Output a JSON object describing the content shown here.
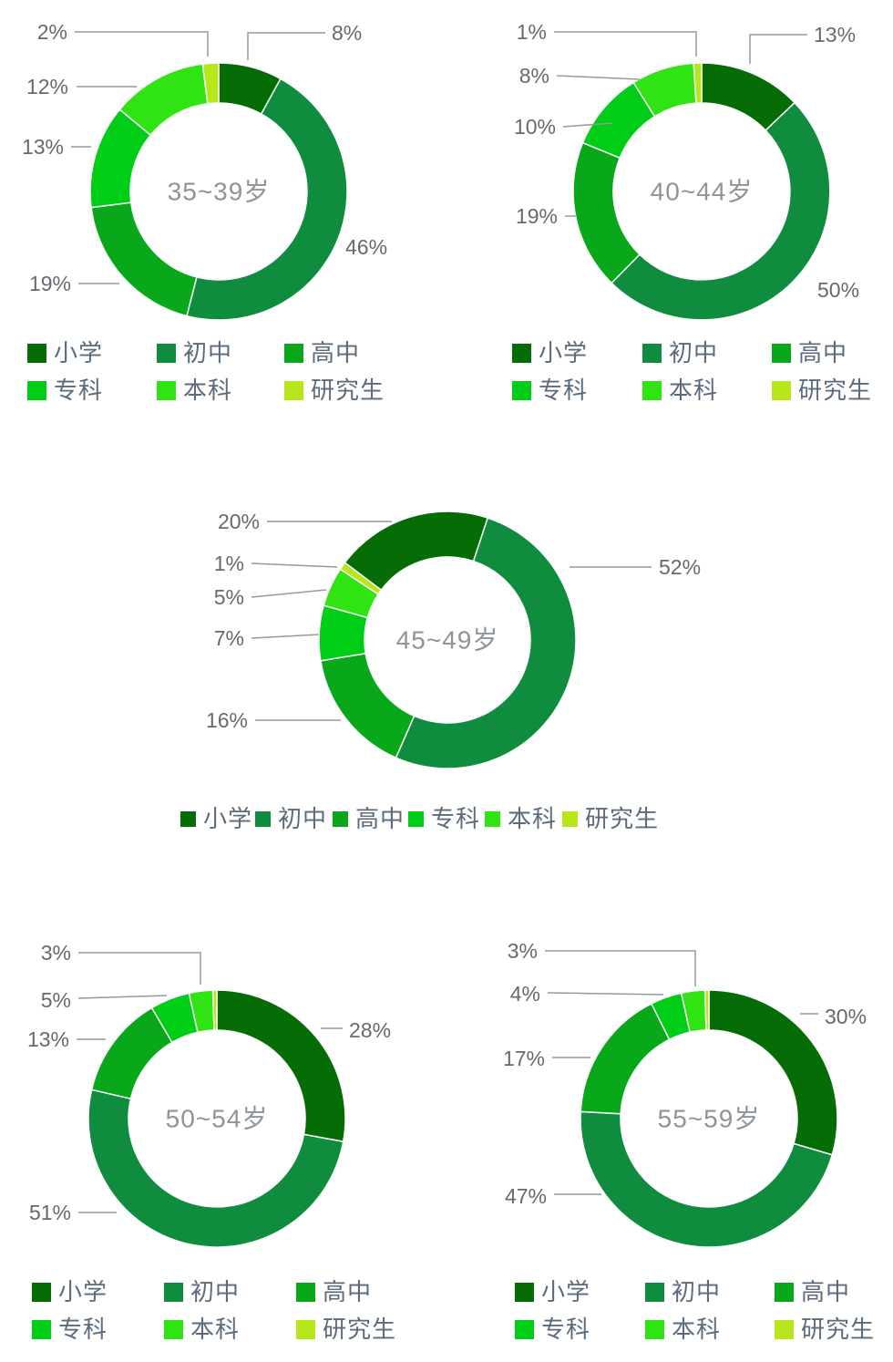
{
  "palette": {
    "primary_school": "#066c06",
    "middle_school": "#0f8c3e",
    "high_school": "#09a81a",
    "junior_college": "#00cd16",
    "bachelor": "#30e313",
    "graduate": "#b7e61a"
  },
  "text_colors": {
    "percent_label": "#646a6f",
    "center_title": "#8e9499",
    "legend_text": "#5b6b7b",
    "leader_line": "#97999b"
  },
  "legend_labels": [
    "小学",
    "初中",
    "高中",
    "专科",
    "本科",
    "研究生"
  ],
  "chart_data": [
    {
      "type": "pie",
      "subtype": "donut",
      "title": "35~39岁",
      "unit": "%",
      "legend_position": "bottom",
      "categories": [
        "小学",
        "初中",
        "高中",
        "专科",
        "本科",
        "研究生"
      ],
      "values": [
        8,
        46,
        19,
        13,
        12,
        2
      ],
      "labels": [
        "8%",
        "46%",
        "19%",
        "13%",
        "12%",
        "2%"
      ]
    },
    {
      "type": "pie",
      "subtype": "donut",
      "title": "40~44岁",
      "unit": "%",
      "legend_position": "bottom",
      "categories": [
        "小学",
        "初中",
        "高中",
        "专科",
        "本科",
        "研究生"
      ],
      "values": [
        13,
        50,
        19,
        10,
        8,
        1
      ],
      "labels": [
        "13%",
        "50%",
        "19%",
        "10%",
        "8%",
        "1%"
      ]
    },
    {
      "type": "pie",
      "subtype": "donut",
      "title": "45~49岁",
      "unit": "%",
      "legend_position": "bottom",
      "categories": [
        "小学",
        "初中",
        "高中",
        "专科",
        "本科",
        "研究生"
      ],
      "values": [
        20,
        52,
        16,
        7,
        5,
        1
      ],
      "labels": [
        "20%",
        "52%",
        "16%",
        "7%",
        "5%",
        "1%"
      ]
    },
    {
      "type": "pie",
      "subtype": "donut",
      "title": "50~54岁",
      "unit": "%",
      "legend_position": "bottom",
      "categories": [
        "小学",
        "初中",
        "高中",
        "专科",
        "本科",
        "研究生"
      ],
      "values": [
        28,
        51,
        13,
        5,
        3,
        0
      ],
      "labels": [
        "28%",
        "51%",
        "13%",
        "5%",
        "3%",
        ""
      ]
    },
    {
      "type": "pie",
      "subtype": "donut",
      "title": "55~59岁",
      "unit": "%",
      "legend_position": "bottom",
      "categories": [
        "小学",
        "初中",
        "高中",
        "专科",
        "本科",
        "研究生"
      ],
      "values": [
        30,
        47,
        17,
        4,
        3,
        0
      ],
      "labels": [
        "30%",
        "47%",
        "17%",
        "4%",
        "3%",
        ""
      ]
    }
  ]
}
